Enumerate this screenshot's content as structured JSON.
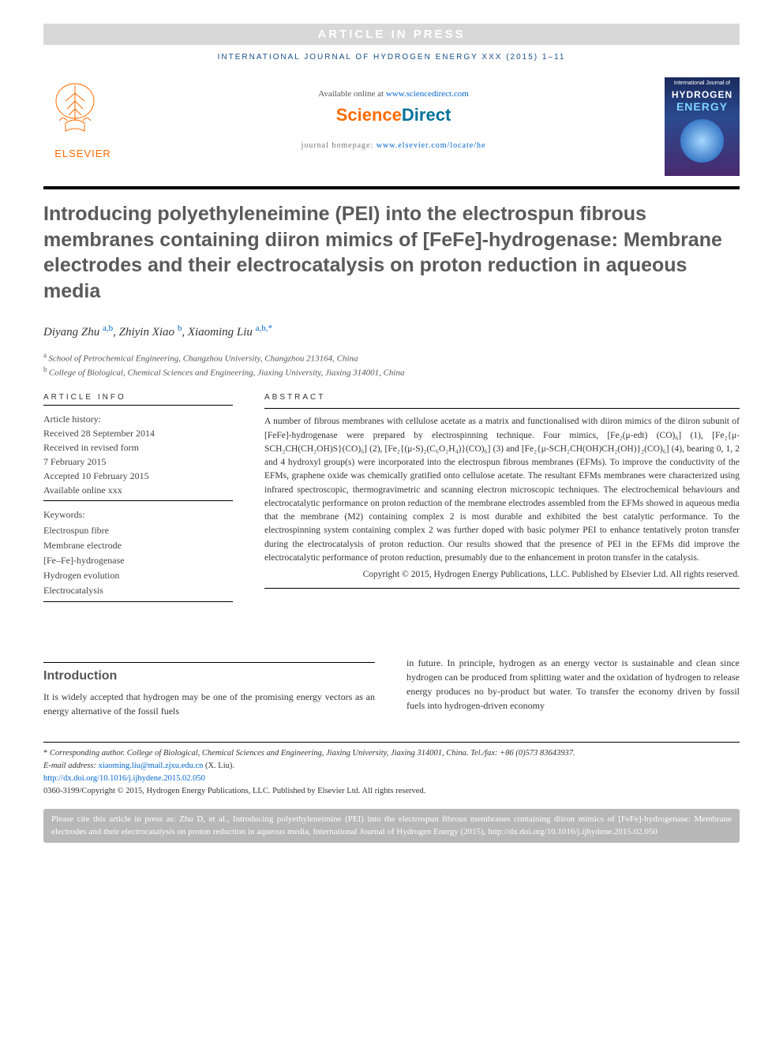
{
  "banner": {
    "label": "ARTICLE IN PRESS"
  },
  "journal_ref": "INTERNATIONAL JOURNAL OF HYDROGEN ENERGY XXX (2015) 1–11",
  "header": {
    "elsevier": "ELSEVIER",
    "available_prefix": "Available online at ",
    "available_link": "www.sciencedirect.com",
    "sciencedirect": {
      "part1": "Science",
      "part2": "Direct"
    },
    "homepage_prefix": "journal homepage: ",
    "homepage_link": "www.elsevier.com/locate/he",
    "cover": {
      "line1": "International Journal of",
      "line2": "HYDROGEN",
      "line3": "ENERGY"
    }
  },
  "title": "Introducing polyethyleneimine (PEI) into the electrospun fibrous membranes containing diiron mimics of [FeFe]-hydrogenase: Membrane electrodes and their electrocatalysis on proton reduction in aqueous media",
  "authors": [
    {
      "name": "Diyang Zhu",
      "sup": "a,b"
    },
    {
      "name": "Zhiyin Xiao",
      "sup": "b"
    },
    {
      "name": "Xiaoming Liu",
      "sup": "a,b,",
      "star": "*"
    }
  ],
  "affiliations": [
    {
      "sup": "a",
      "text": "School of Petrochemical Engineering, Changzhou University, Changzhou 213164, China"
    },
    {
      "sup": "b",
      "text": "College of Biological, Chemical Sciences and Engineering, Jiaxing University, Jiaxing 314001, China"
    }
  ],
  "article_info": {
    "label": "ARTICLE INFO",
    "history_label": "Article history:",
    "history": [
      "Received 28 September 2014",
      "Received in revised form",
      "7 February 2015",
      "Accepted 10 February 2015",
      "Available online xxx"
    ],
    "keywords_label": "Keywords:",
    "keywords": [
      "Electrospun fibre",
      "Membrane electrode",
      "[Fe–Fe]-hydrogenase",
      "Hydrogen evolution",
      "Electrocatalysis"
    ]
  },
  "abstract": {
    "label": "ABSTRACT",
    "text": "A number of fibrous membranes with cellulose acetate as a matrix and functionalised with diiron mimics of the diiron subunit of [FeFe]-hydrogenase were prepared by electrospinning technique. Four mimics, [Fe₂(μ-edt) (CO)₆] (1), [Fe₂{μ-SCH₂CH(CH₂OH)S}(CO)₆] (2), [Fe₂{(μ-S)₂(C₆O₂H₄)}(CO)₆] (3) and [Fe₂{μ-SCH₂CH(OH)CH₂(OH)}₂(CO)₆] (4), bearing 0, 1, 2 and 4 hydroxyl group(s) were incorporated into the electrospun fibrous membranes (EFMs). To improve the conductivity of the EFMs, graphene oxide was chemically gratified onto cellulose acetate. The resultant EFMs membranes were characterized using infrared spectroscopic, thermogravimetric and scanning electron microscopic techniques. The electrochemical behaviours and electrocatalytic performance on proton reduction of the membrane electrodes assembled from the EFMs showed in aqueous media that the membrane (M2) containing complex 2 is most durable and exhibited the best catalytic performance. To the electrospinning system containing complex 2 was further doped with basic polymer PEI to enhance tentatively proton transfer during the electrocatalysis of proton reduction. Our results showed that the presence of PEI in the EFMs did improve the electrocatalytic performance of proton reduction, presumably due to the enhancement in proton transfer in the catalysis.",
    "copyright": "Copyright © 2015, Hydrogen Energy Publications, LLC. Published by Elsevier Ltd. All rights reserved."
  },
  "intro": {
    "heading": "Introduction",
    "left": "It is widely accepted that hydrogen may be one of the promising energy vectors as an energy alternative of the fossil fuels",
    "right": "in future. In principle, hydrogen as an energy vector is sustainable and clean since hydrogen can be produced from splitting water and the oxidation of hydrogen to release energy produces no by-product but water. To transfer the economy driven by fossil fuels into hydrogen-driven economy"
  },
  "footnotes": {
    "corresponding": "Corresponding author. College of Biological, Chemical Sciences and Engineering, Jiaxing University, Jiaxing 314001, China. Tel./fax: +86 (0)573 83643937.",
    "email_label": "E-mail address: ",
    "email": "xiaoming.liu@mail.zjxu.edu.cn",
    "email_name": " (X. Liu).",
    "doi": "http://dx.doi.org/10.1016/j.ijhydene.2015.02.050",
    "issn": "0360-3199/Copyright © 2015, Hydrogen Energy Publications, LLC. Published by Elsevier Ltd. All rights reserved."
  },
  "citebox": "Please cite this article in press as: Zhu D, et al., Introducing polyethyleneimine (PEI) into the electrospun fibrous membranes containing diiron mimics of [FeFe]-hydrogenase: Membrane electrodes and their electrocatalysis on proton reduction in aqueous media, International Journal of Hydrogen Energy (2015), http://dx.doi.org/10.1016/j.ijhydene.2015.02.050",
  "colors": {
    "banner_bg": "#d8d8d8",
    "link_blue": "#0066cc",
    "orange": "#ff6b00",
    "sd_blue": "#007398",
    "title_gray": "#5a5a5a",
    "citebox_bg": "#b8b8b8"
  }
}
